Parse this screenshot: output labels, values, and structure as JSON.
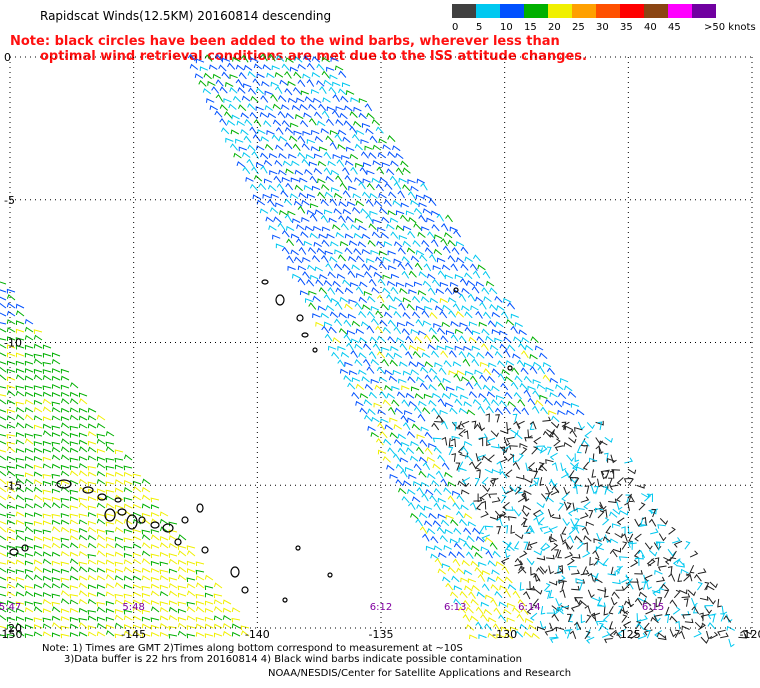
{
  "header": {
    "title": "Rapidscat Winds(12.5KM) 20160814 descending",
    "note_line1": "Note: black circles have been added to the wind barbs, wherever less than",
    "note_line2": "optimal wind retrieval conditions are met due to the ISS attitude changes."
  },
  "legend": {
    "unit_label": ">50 knots",
    "stops": [
      {
        "label": "0",
        "color": "#404040"
      },
      {
        "label": "5",
        "color": "#00c8f0"
      },
      {
        "label": "10",
        "color": "#0050ff"
      },
      {
        "label": "15",
        "color": "#00b000"
      },
      {
        "label": "20",
        "color": "#f0f000"
      },
      {
        "label": "25",
        "color": "#ffa000"
      },
      {
        "label": "30",
        "color": "#ff5000"
      },
      {
        "label": "35",
        "color": "#ff0000"
      },
      {
        "label": "40",
        "color": "#8b4513"
      },
      {
        "label": "45",
        "color": "#ff00ff"
      },
      {
        "label": "",
        "color": "#7000a0"
      }
    ]
  },
  "axes": {
    "lat_labels": [
      {
        "value": 0,
        "label": "0"
      },
      {
        "value": -5,
        "label": "-5"
      },
      {
        "value": -10,
        "label": "-10"
      },
      {
        "value": -15,
        "label": "-15"
      },
      {
        "value": -20,
        "label": "-20"
      }
    ],
    "lon_labels": [
      {
        "value": -150,
        "label": "-150"
      },
      {
        "value": -145,
        "label": "-145"
      },
      {
        "value": -140,
        "label": "-140"
      },
      {
        "value": -135,
        "label": "-135"
      },
      {
        "value": -130,
        "label": "-130"
      },
      {
        "value": -125,
        "label": "-125"
      },
      {
        "value": -120,
        "label": "-120"
      }
    ],
    "lon_range": [
      -150,
      -120
    ],
    "lat_range": [
      -20,
      0
    ],
    "grid": "dotted"
  },
  "time_labels": [
    {
      "lon": -150,
      "label": "5:47"
    },
    {
      "lon": -145,
      "label": "5:48"
    },
    {
      "lon": -135,
      "label": "6:12"
    },
    {
      "lon": -132,
      "label": "6:13"
    },
    {
      "lon": -129,
      "label": "6:14"
    },
    {
      "lon": -124,
      "label": "6:15"
    }
  ],
  "footer": {
    "note1": "Note: 1) Times are GMT 2)Times along bottom correspond to measurement at ~10S",
    "note2": "3)Data buffer is 22 hrs from 20160814 4) Black wind barbs indicate possible contamination",
    "credit": "NOAA/NESDIS/Center for Satellite Applications and Research"
  }
}
